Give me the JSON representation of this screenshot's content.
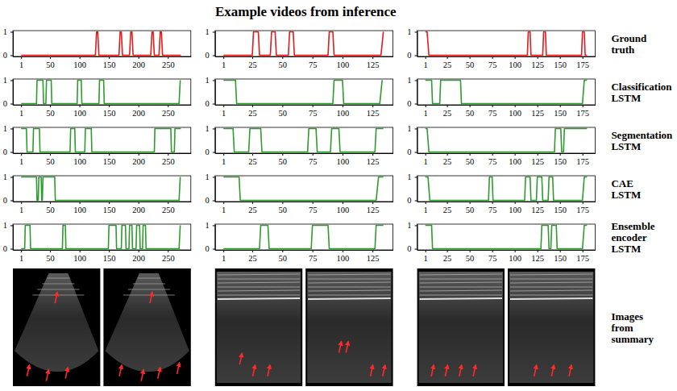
{
  "title": "Example videos from inference",
  "row_labels": [
    "Ground truth",
    "Classification LSTM",
    "Segmentation LSTM",
    "CAE LSTM",
    "Ensemble encoder LSTM",
    "Images from summary"
  ],
  "chart_data": [
    {
      "type": "line",
      "color": "#e31a1c",
      "xlim": [
        -13,
        289
      ],
      "ylim": [
        -0.05,
        1.05
      ],
      "xticks": [
        1,
        50,
        100,
        150,
        200,
        250
      ],
      "yticks": [
        0,
        1
      ],
      "x": [
        1,
        127,
        129,
        131,
        133,
        167,
        169,
        171,
        173,
        185,
        187,
        189,
        191,
        221,
        223,
        225,
        227,
        235,
        237,
        239,
        241,
        272
      ],
      "values": [
        0,
        0,
        1,
        1,
        0,
        0,
        1,
        1,
        0,
        0,
        1,
        1,
        0,
        0,
        1,
        1,
        0,
        0,
        1,
        1,
        0,
        0
      ]
    },
    {
      "type": "line",
      "color": "#e31a1c",
      "xlim": [
        -6,
        142
      ],
      "ylim": [
        -0.05,
        1.05
      ],
      "xticks": [
        1,
        25,
        50,
        75,
        100,
        125
      ],
      "yticks": [
        0,
        1
      ],
      "x": [
        1,
        25,
        26,
        30,
        31,
        40,
        41,
        44,
        45,
        55,
        56,
        59,
        60,
        88,
        89,
        92,
        93,
        132,
        134
      ],
      "values": [
        0,
        0,
        1,
        1,
        0,
        0,
        1,
        1,
        0,
        0,
        1,
        1,
        0,
        0,
        1,
        1,
        0,
        0,
        1
      ]
    },
    {
      "type": "line",
      "color": "#e31a1c",
      "xlim": [
        -8,
        189
      ],
      "ylim": [
        -0.05,
        1.05
      ],
      "xticks": [
        1,
        25,
        50,
        75,
        100,
        125,
        150,
        175
      ],
      "yticks": [
        0,
        1
      ],
      "x": [
        1,
        3,
        5,
        114,
        115,
        117,
        118,
        131,
        132,
        134,
        135,
        174,
        175,
        177,
        178,
        180
      ],
      "values": [
        1,
        1,
        0,
        0,
        1,
        1,
        0,
        0,
        1,
        1,
        0,
        0,
        1,
        1,
        0,
        0
      ]
    },
    {
      "type": "line",
      "color": "#2e9b2e",
      "xlim": [
        -13,
        289
      ],
      "ylim": [
        -0.05,
        1.05
      ],
      "xticks": [
        1,
        50,
        100,
        150,
        200,
        250
      ],
      "yticks": [
        0,
        1
      ],
      "x": [
        1,
        27,
        28,
        38,
        39,
        43,
        44,
        52,
        53,
        96,
        97,
        103,
        104,
        133,
        134,
        141,
        142,
        269,
        271
      ],
      "values": [
        0,
        0,
        1,
        1,
        0,
        0,
        1,
        1,
        0,
        0,
        1,
        1,
        0,
        0,
        1,
        1,
        0,
        0,
        1
      ]
    },
    {
      "type": "line",
      "color": "#2e9b2e",
      "xlim": [
        -6,
        142
      ],
      "ylim": [
        -0.05,
        1.05
      ],
      "xticks": [
        1,
        25,
        50,
        75,
        100,
        125
      ],
      "yticks": [
        0,
        1
      ],
      "x": [
        1,
        11,
        12,
        92,
        93,
        100,
        101,
        131,
        133
      ],
      "values": [
        1,
        1,
        0,
        0,
        1,
        1,
        0,
        0,
        1
      ]
    },
    {
      "type": "line",
      "color": "#2e9b2e",
      "xlim": [
        -8,
        189
      ],
      "ylim": [
        -0.05,
        1.05
      ],
      "xticks": [
        1,
        25,
        50,
        75,
        100,
        125,
        150,
        175
      ],
      "yticks": [
        0,
        1
      ],
      "x": [
        1,
        8,
        9,
        17,
        18,
        40,
        41,
        175,
        177,
        180
      ],
      "values": [
        1,
        1,
        0,
        0,
        1,
        1,
        0,
        0,
        1,
        1
      ]
    },
    {
      "type": "line",
      "color": "#2e9b2e",
      "xlim": [
        -13,
        289
      ],
      "ylim": [
        -0.05,
        1.05
      ],
      "xticks": [
        1,
        50,
        100,
        150,
        200,
        250
      ],
      "yticks": [
        0,
        1
      ],
      "x": [
        1,
        10,
        11,
        21,
        22,
        32,
        33,
        84,
        85,
        92,
        93,
        109,
        110,
        120,
        121,
        227,
        228,
        255,
        256,
        261,
        262,
        272
      ],
      "values": [
        1,
        1,
        0,
        0,
        1,
        1,
        0,
        0,
        1,
        1,
        0,
        0,
        1,
        1,
        0,
        0,
        1,
        1,
        0,
        0,
        1,
        1
      ]
    },
    {
      "type": "line",
      "color": "#2e9b2e",
      "xlim": [
        -6,
        142
      ],
      "ylim": [
        -0.05,
        1.05
      ],
      "xticks": [
        1,
        25,
        50,
        75,
        100,
        125
      ],
      "yticks": [
        0,
        1
      ],
      "x": [
        1,
        9,
        10,
        22,
        23,
        32,
        33,
        71,
        72,
        78,
        79,
        90,
        91,
        97,
        98,
        127,
        128,
        134
      ],
      "values": [
        1,
        1,
        0,
        0,
        1,
        1,
        0,
        0,
        1,
        1,
        0,
        0,
        1,
        1,
        0,
        0,
        1,
        1
      ]
    },
    {
      "type": "line",
      "color": "#2e9b2e",
      "xlim": [
        -8,
        189
      ],
      "ylim": [
        -0.05,
        1.05
      ],
      "xticks": [
        1,
        25,
        50,
        75,
        100,
        125,
        150,
        175
      ],
      "yticks": [
        0,
        1
      ],
      "x": [
        1,
        3,
        5,
        144,
        145,
        151,
        152,
        154,
        155,
        180
      ],
      "values": [
        1,
        1,
        0,
        0,
        1,
        1,
        0,
        0,
        1,
        1
      ]
    },
    {
      "type": "line",
      "color": "#2e9b2e",
      "xlim": [
        -13,
        289
      ],
      "ylim": [
        -0.05,
        1.05
      ],
      "xticks": [
        1,
        50,
        100,
        150,
        200,
        250
      ],
      "yticks": [
        0,
        1
      ],
      "x": [
        1,
        27,
        28,
        30,
        31,
        35,
        36,
        37,
        38,
        58,
        59,
        269,
        271
      ],
      "values": [
        1,
        1,
        0,
        0,
        1,
        1,
        0,
        0,
        1,
        1,
        0,
        0,
        1
      ]
    },
    {
      "type": "line",
      "color": "#2e9b2e",
      "xlim": [
        -6,
        142
      ],
      "ylim": [
        -0.05,
        1.05
      ],
      "xticks": [
        1,
        25,
        50,
        75,
        100,
        125
      ],
      "yticks": [
        0,
        1
      ],
      "x": [
        1,
        14,
        15,
        128,
        130,
        134
      ],
      "values": [
        1,
        1,
        0,
        0,
        1,
        1
      ]
    },
    {
      "type": "line",
      "color": "#2e9b2e",
      "xlim": [
        -8,
        189
      ],
      "ylim": [
        -0.05,
        1.05
      ],
      "xticks": [
        1,
        25,
        50,
        75,
        100,
        125,
        150,
        175
      ],
      "yticks": [
        0,
        1
      ],
      "x": [
        1,
        4,
        6,
        71,
        72,
        75,
        76,
        111,
        112,
        117,
        118,
        124,
        125,
        130,
        131,
        137,
        138,
        142,
        143,
        175,
        177,
        180
      ],
      "values": [
        1,
        1,
        0,
        0,
        1,
        1,
        0,
        0,
        1,
        1,
        0,
        0,
        1,
        1,
        0,
        0,
        1,
        1,
        0,
        0,
        1,
        1
      ]
    },
    {
      "type": "line",
      "color": "#2e9b2e",
      "xlim": [
        -13,
        289
      ],
      "ylim": [
        -0.05,
        1.05
      ],
      "xticks": [
        1,
        50,
        100,
        150,
        200,
        250
      ],
      "yticks": [
        0,
        1
      ],
      "x": [
        1,
        7,
        8,
        16,
        17,
        71,
        72,
        76,
        77,
        149,
        150,
        162,
        163,
        171,
        172,
        178,
        179,
        184,
        185,
        189,
        190,
        196,
        197,
        202,
        203,
        207,
        208,
        212,
        213,
        269,
        271
      ],
      "values": [
        0,
        0,
        1,
        1,
        0,
        0,
        1,
        1,
        0,
        0,
        1,
        1,
        0,
        0,
        1,
        1,
        0,
        0,
        1,
        1,
        0,
        0,
        1,
        1,
        0,
        0,
        1,
        1,
        0,
        0,
        1
      ]
    },
    {
      "type": "line",
      "color": "#2e9b2e",
      "xlim": [
        -6,
        142
      ],
      "ylim": [
        -0.05,
        1.05
      ],
      "xticks": [
        1,
        25,
        50,
        75,
        100,
        125
      ],
      "yticks": [
        0,
        1
      ],
      "x": [
        1,
        31,
        32,
        38,
        39,
        74,
        75,
        88,
        89,
        127,
        128,
        134
      ],
      "values": [
        0,
        0,
        1,
        1,
        0,
        0,
        1,
        1,
        0,
        0,
        1,
        1
      ]
    },
    {
      "type": "line",
      "color": "#2e9b2e",
      "xlim": [
        -8,
        189
      ],
      "ylim": [
        -0.05,
        1.05
      ],
      "xticks": [
        1,
        25,
        50,
        75,
        100,
        125,
        150,
        175
      ],
      "yticks": [
        0,
        1
      ],
      "x": [
        1,
        8,
        9,
        129,
        130,
        137,
        138,
        140,
        141,
        146,
        147,
        175,
        177,
        180
      ],
      "values": [
        1,
        1,
        0,
        0,
        1,
        1,
        0,
        0,
        1,
        1,
        0,
        0,
        1,
        1
      ]
    }
  ]
}
